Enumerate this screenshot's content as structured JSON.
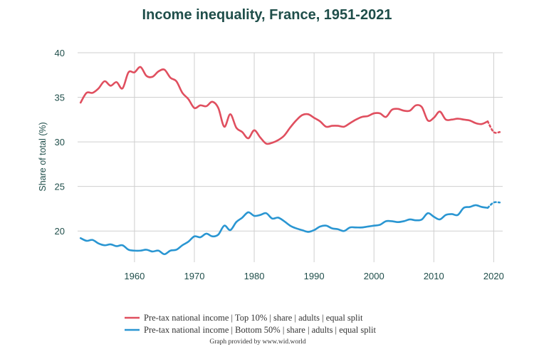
{
  "chart_data": {
    "type": "line",
    "title": "Income inequality, France, 1951-2021",
    "ylabel": "Share of total (%)",
    "xlabel": "",
    "xlim": [
      1950.5,
      2021.5
    ],
    "ylim": [
      16.5,
      40
    ],
    "x_ticks": [
      1960,
      1970,
      1980,
      1990,
      2000,
      2010,
      2020
    ],
    "y_ticks": [
      20,
      25,
      30,
      35,
      40
    ],
    "grid": "vertical and horizontal",
    "legend_position": "bottom-center",
    "credit": "Graph provided by www.wid.world",
    "series": [
      {
        "name": "Pre-tax national income | Top 10% | share | adults | equal split",
        "color": "#e04f5f",
        "x": [
          1951,
          1952,
          1953,
          1954,
          1955,
          1956,
          1957,
          1958,
          1959,
          1960,
          1961,
          1962,
          1963,
          1964,
          1965,
          1966,
          1967,
          1968,
          1969,
          1970,
          1971,
          1972,
          1973,
          1974,
          1975,
          1976,
          1977,
          1978,
          1979,
          1980,
          1981,
          1982,
          1983,
          1984,
          1985,
          1986,
          1987,
          1988,
          1989,
          1990,
          1991,
          1992,
          1993,
          1994,
          1995,
          1996,
          1997,
          1998,
          1999,
          2000,
          2001,
          2002,
          2003,
          2004,
          2005,
          2006,
          2007,
          2008,
          2009,
          2010,
          2011,
          2012,
          2013,
          2014,
          2015,
          2016,
          2017,
          2018,
          2019
        ],
        "values": [
          34.4,
          35.5,
          35.5,
          36.0,
          36.8,
          36.3,
          36.7,
          36.0,
          37.8,
          37.8,
          38.4,
          37.4,
          37.3,
          37.9,
          38.1,
          37.2,
          36.8,
          35.5,
          34.8,
          33.8,
          34.1,
          34.0,
          34.5,
          33.8,
          31.7,
          33.1,
          31.6,
          31.1,
          30.4,
          31.3,
          30.5,
          29.8,
          29.9,
          30.2,
          30.7,
          31.6,
          32.4,
          33.0,
          33.1,
          32.7,
          32.3,
          31.7,
          31.8,
          31.8,
          31.7,
          32.1,
          32.5,
          32.8,
          32.9,
          33.2,
          33.2,
          32.8,
          33.6,
          33.7,
          33.5,
          33.5,
          34.1,
          33.9,
          32.4,
          32.7,
          33.4,
          32.5,
          32.5,
          32.6,
          32.5,
          32.4,
          32.1,
          32.0,
          32.3
        ],
        "projection": {
          "x": [
            2019,
            2020,
            2021
          ],
          "values": [
            32.3,
            31.1,
            31.1
          ],
          "style": "dotted"
        }
      },
      {
        "name": "Pre-tax national income | Bottom 50% | share | adults | equal split",
        "color": "#2a96d2",
        "x": [
          1951,
          1952,
          1953,
          1954,
          1955,
          1956,
          1957,
          1958,
          1959,
          1960,
          1961,
          1962,
          1963,
          1964,
          1965,
          1966,
          1967,
          1968,
          1969,
          1970,
          1971,
          1972,
          1973,
          1974,
          1975,
          1976,
          1977,
          1978,
          1979,
          1980,
          1981,
          1982,
          1983,
          1984,
          1985,
          1986,
          1987,
          1988,
          1989,
          1990,
          1991,
          1992,
          1993,
          1994,
          1995,
          1996,
          1997,
          1998,
          1999,
          2000,
          2001,
          2002,
          2003,
          2004,
          2005,
          2006,
          2007,
          2008,
          2009,
          2010,
          2011,
          2012,
          2013,
          2014,
          2015,
          2016,
          2017,
          2018,
          2019
        ],
        "values": [
          19.2,
          18.9,
          19.0,
          18.6,
          18.4,
          18.5,
          18.3,
          18.4,
          17.9,
          17.8,
          17.8,
          17.9,
          17.7,
          17.8,
          17.4,
          17.8,
          17.9,
          18.4,
          18.8,
          19.4,
          19.3,
          19.7,
          19.4,
          19.6,
          20.6,
          20.1,
          21.0,
          21.5,
          22.1,
          21.7,
          21.8,
          22.0,
          21.4,
          21.5,
          21.1,
          20.6,
          20.3,
          20.1,
          19.9,
          20.1,
          20.5,
          20.6,
          20.3,
          20.2,
          20.0,
          20.4,
          20.4,
          20.4,
          20.5,
          20.6,
          20.7,
          21.1,
          21.1,
          21.0,
          21.1,
          21.3,
          21.2,
          21.3,
          22.0,
          21.6,
          21.3,
          21.8,
          21.9,
          21.8,
          22.6,
          22.7,
          22.9,
          22.7,
          22.6
        ],
        "projection": {
          "x": [
            2019,
            2020,
            2021
          ],
          "values": [
            22.6,
            23.2,
            23.2
          ],
          "style": "dotted"
        }
      }
    ]
  }
}
